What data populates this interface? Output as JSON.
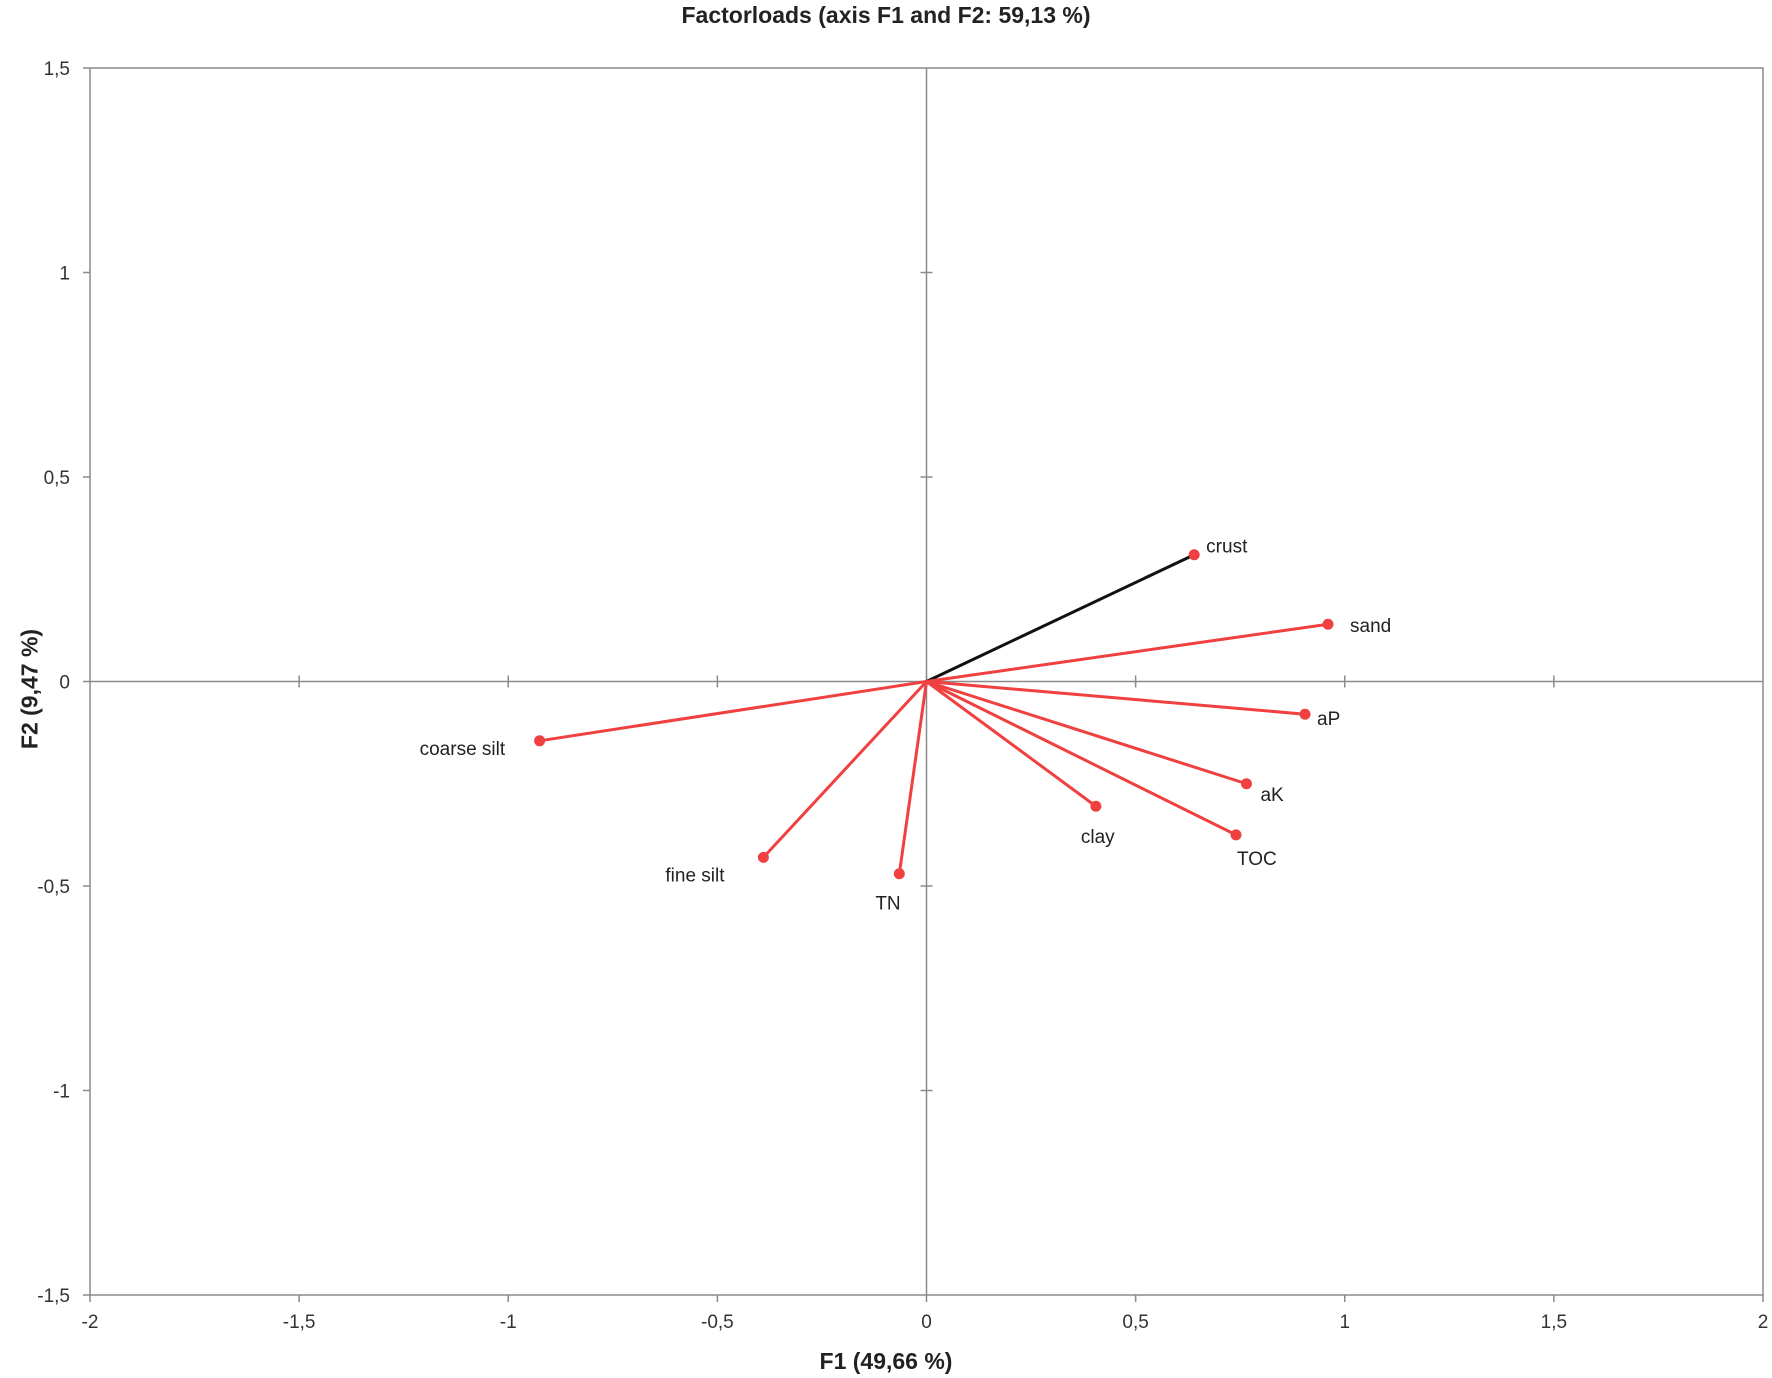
{
  "chart_data": {
    "type": "scatter",
    "title": "Factorloads (axis F1 and F2: 59,13 %)",
    "xlabel": "F1 (49,66 %)",
    "ylabel": "F2 (9,47 %)",
    "xlim": [
      -2,
      2
    ],
    "ylim": [
      -1.5,
      1.5
    ],
    "x_ticks": [
      "-2",
      "-1,5",
      "-1",
      "-0,5",
      "0",
      "0,5",
      "1",
      "1,5",
      "2"
    ],
    "y_ticks": [
      "-1,5",
      "-1",
      "-0,5",
      "0",
      "0,5",
      "1",
      "1,5"
    ],
    "grid": false,
    "vector_color": "#f04040",
    "highlight_color": "#111111",
    "points": [
      {
        "label": "crust",
        "x": 0.64,
        "y": 0.31,
        "highlight": true
      },
      {
        "label": "sand",
        "x": 0.96,
        "y": 0.14
      },
      {
        "label": "aP",
        "x": 0.905,
        "y": -0.08
      },
      {
        "label": "aK",
        "x": 0.765,
        "y": -0.25
      },
      {
        "label": "TOC",
        "x": 0.74,
        "y": -0.375
      },
      {
        "label": "clay",
        "x": 0.405,
        "y": -0.305
      },
      {
        "label": "TN",
        "x": -0.065,
        "y": -0.47
      },
      {
        "label": "fine silt",
        "x": -0.39,
        "y": -0.43
      },
      {
        "label": "coarse silt",
        "x": -0.925,
        "y": -0.145
      }
    ]
  }
}
